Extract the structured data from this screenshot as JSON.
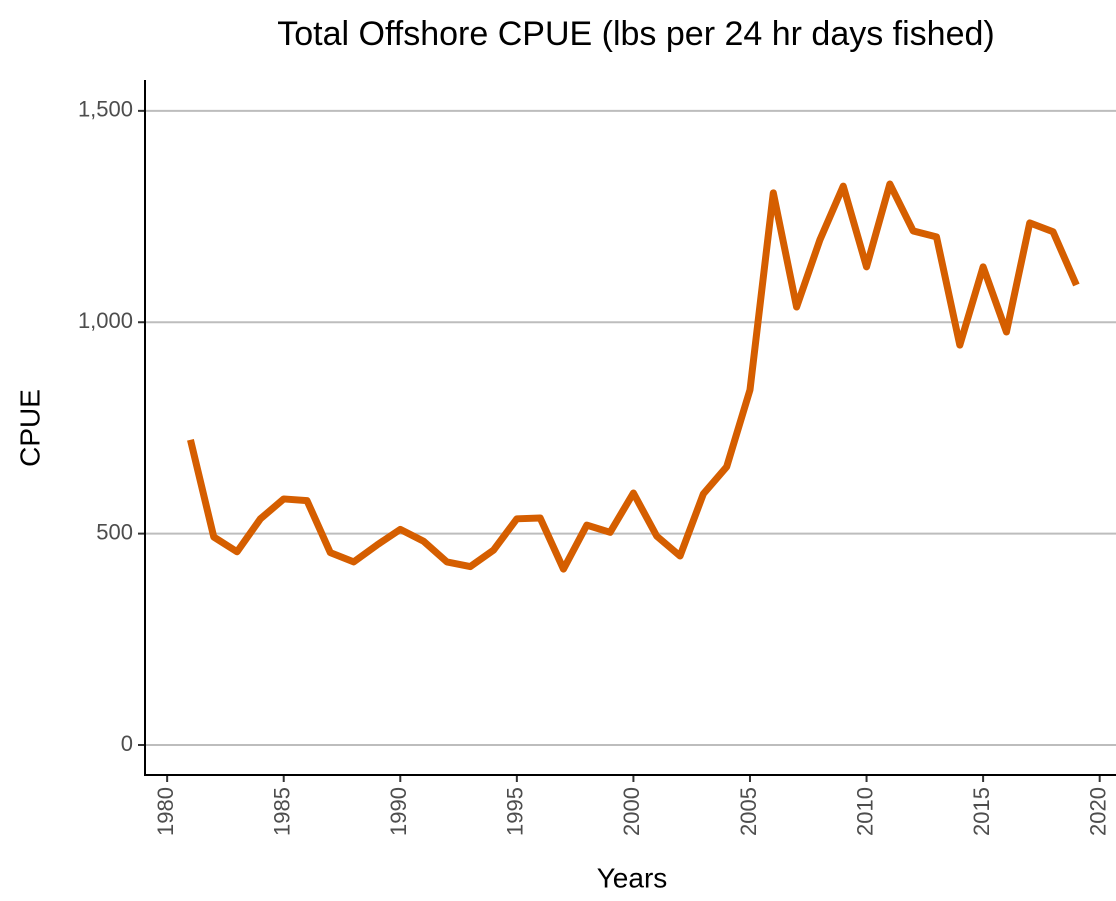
{
  "chart_data": {
    "type": "line",
    "title": "Total Offshore CPUE (lbs per 24 hr days fished)",
    "x_label": "Years",
    "y_label": "CPUE",
    "x": [
      1981,
      1982,
      1983,
      1984,
      1985,
      1986,
      1987,
      1988,
      1989,
      1990,
      1991,
      1992,
      1993,
      1994,
      1995,
      1996,
      1997,
      1998,
      1999,
      2000,
      2001,
      2002,
      2003,
      2004,
      2005,
      2006,
      2007,
      2008,
      2009,
      2010,
      2011,
      2012,
      2013,
      2014,
      2015,
      2016,
      2017,
      2018,
      2019
    ],
    "series": [
      {
        "name": "CPUE",
        "color": "#d55e00",
        "values": [
          722,
          492,
          457,
          535,
          582,
          578,
          455,
          433,
          473,
          510,
          482,
          433,
          422,
          461,
          535,
          537,
          416,
          520,
          503,
          596,
          494,
          447,
          594,
          658,
          840,
          1306,
          1036,
          1195,
          1322,
          1131,
          1327,
          1216,
          1202,
          946,
          1131,
          977,
          1235,
          1214,
          1088
        ]
      }
    ],
    "xlim": [
      1979.05,
      2020.7
    ],
    "xticks": [
      1980,
      1985,
      1990,
      1995,
      2000,
      2005,
      2010,
      2015,
      2020
    ],
    "ylim": [
      -71,
      1573
    ],
    "yticks": [
      0,
      500,
      {
        "value": 1000,
        "label": "1,000"
      },
      {
        "value": 1500,
        "label": "1,500"
      }
    ],
    "grid": true
  }
}
